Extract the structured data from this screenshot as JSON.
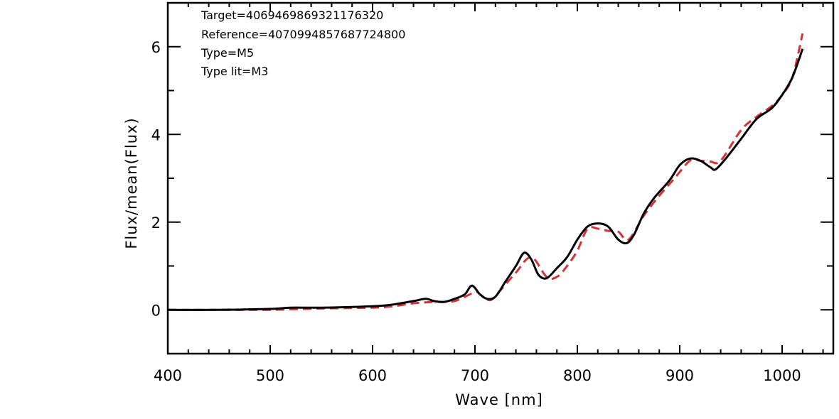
{
  "chart_data": {
    "type": "line",
    "xlabel": "Wave [nm]",
    "ylabel": "Flux/mean(Flux)",
    "xlim": [
      400,
      1050
    ],
    "ylim": [
      -1,
      7
    ],
    "xticks": [
      400,
      500,
      600,
      700,
      800,
      900,
      1000
    ],
    "yticks": [
      0,
      2,
      4,
      6
    ],
    "grid": false,
    "annotations": [
      "Target=4069469869321176320",
      "Reference=4070994857687724800",
      "Type=M5",
      "Type lit=M3"
    ],
    "series": [
      {
        "color": "#000000",
        "style": "solid",
        "x": [
          400,
          450,
          500,
          520,
          550,
          600,
          620,
          640,
          652,
          660,
          670,
          680,
          690,
          697,
          705,
          712,
          720,
          730,
          740,
          748,
          755,
          762,
          770,
          780,
          790,
          800,
          810,
          820,
          830,
          840,
          848,
          855,
          865,
          875,
          890,
          900,
          910,
          920,
          930,
          935,
          945,
          960,
          975,
          990,
          1000,
          1010,
          1020
        ],
        "values": [
          0.0,
          0.0,
          0.02,
          0.05,
          0.05,
          0.08,
          0.12,
          0.2,
          0.25,
          0.2,
          0.18,
          0.25,
          0.35,
          0.55,
          0.35,
          0.25,
          0.3,
          0.65,
          1.0,
          1.3,
          1.15,
          0.8,
          0.72,
          0.95,
          1.2,
          1.6,
          1.9,
          1.97,
          1.9,
          1.6,
          1.52,
          1.7,
          2.2,
          2.55,
          2.95,
          3.3,
          3.45,
          3.4,
          3.25,
          3.2,
          3.45,
          3.9,
          4.35,
          4.6,
          4.9,
          5.3,
          5.95
        ]
      },
      {
        "color": "#d13438",
        "style": "dashed",
        "x": [
          400,
          450,
          500,
          550,
          600,
          620,
          640,
          660,
          680,
          700,
          705,
          715,
          725,
          740,
          755,
          770,
          780,
          790,
          800,
          810,
          820,
          830,
          840,
          850,
          865,
          880,
          895,
          910,
          920,
          930,
          940,
          960,
          975,
          990,
          1000,
          1010,
          1020
        ],
        "values": [
          0.0,
          0.0,
          0.0,
          0.03,
          0.05,
          0.08,
          0.15,
          0.18,
          0.2,
          0.4,
          0.35,
          0.22,
          0.45,
          0.85,
          1.2,
          0.75,
          0.75,
          1.0,
          1.35,
          1.85,
          1.85,
          1.8,
          1.78,
          1.6,
          2.15,
          2.6,
          3.0,
          3.4,
          3.4,
          3.38,
          3.4,
          4.1,
          4.4,
          4.65,
          4.9,
          5.3,
          6.3
        ]
      }
    ]
  }
}
